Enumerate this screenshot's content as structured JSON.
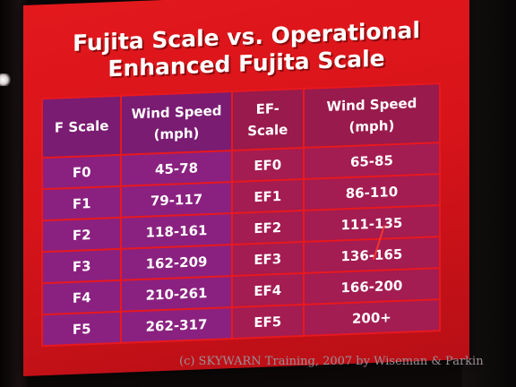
{
  "title": {
    "line1": "Fujita Scale vs. Operational",
    "line2": "Enhanced Fujita Scale"
  },
  "table": {
    "headers": {
      "f_scale": "F Scale",
      "f_wind_line1": "Wind Speed",
      "f_wind_line2": "(mph)",
      "ef_scale_line1": "EF-",
      "ef_scale_line2": "Scale",
      "ef_wind_line1": "Wind Speed",
      "ef_wind_line2": "(mph)"
    },
    "rows": [
      {
        "f": "F0",
        "f_wind": "45-78",
        "ef": "EF0",
        "ef_wind": "65-85"
      },
      {
        "f": "F1",
        "f_wind": "79-117",
        "ef": "EF1",
        "ef_wind": "86-110"
      },
      {
        "f": "F2",
        "f_wind": "118-161",
        "ef": "EF2",
        "ef_wind": "111-135"
      },
      {
        "f": "F3",
        "f_wind": "162-209",
        "ef": "EF3",
        "ef_wind": "136-165"
      },
      {
        "f": "F4",
        "f_wind": "210-261",
        "ef": "EF4",
        "ef_wind": "166-200"
      },
      {
        "f": "F5",
        "f_wind": "262-317",
        "ef": "EF5",
        "ef_wind": "200+"
      }
    ]
  },
  "credit": "(c) SKYWARN Training, 2007 by Wiseman & Parkin",
  "colors": {
    "slide_red": "#d8141a",
    "f_column_purple": "#8a2180",
    "ef_column_magenta": "#a31c52"
  }
}
